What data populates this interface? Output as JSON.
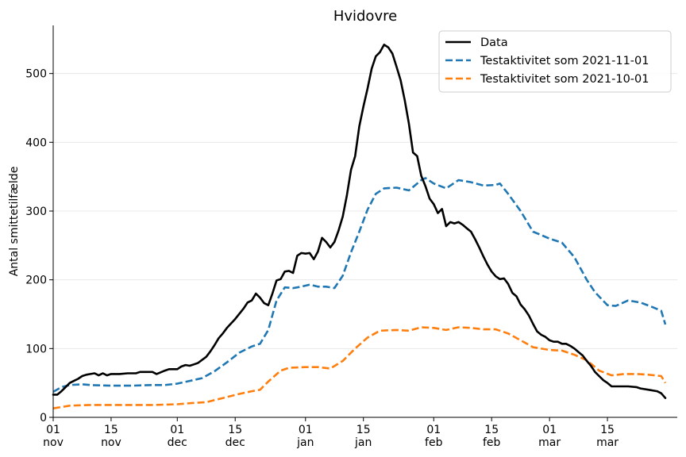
{
  "chart_data": {
    "type": "line",
    "title": "Hvidovre",
    "xlabel": "",
    "ylabel": "Antal smittetilfælde",
    "x_range": [
      "2021-11-01",
      "2022-03-25"
    ],
    "ylim": [
      0,
      570
    ],
    "y_ticks": [
      0,
      100,
      200,
      300,
      400,
      500
    ],
    "x_ticks": [
      {
        "date": "2021-11-01",
        "day": "01",
        "month": "nov"
      },
      {
        "date": "2021-11-15",
        "day": "15",
        "month": "nov"
      },
      {
        "date": "2021-12-01",
        "day": "01",
        "month": "dec"
      },
      {
        "date": "2021-12-15",
        "day": "15",
        "month": "dec"
      },
      {
        "date": "2022-01-01",
        "day": "01",
        "month": "jan"
      },
      {
        "date": "2022-01-15",
        "day": "15",
        "month": "jan"
      },
      {
        "date": "2022-02-01",
        "day": "01",
        "month": "feb"
      },
      {
        "date": "2022-02-15",
        "day": "15",
        "month": "feb"
      },
      {
        "date": "2022-03-01",
        "day": "01",
        "month": "mar"
      },
      {
        "date": "2022-03-15",
        "day": "15",
        "month": "mar"
      }
    ],
    "grid": "horizontal",
    "legend_position": "top-right",
    "series": [
      {
        "name": "Data",
        "color": "#000000",
        "style": "solid",
        "points": [
          [
            "2021-11-01",
            33
          ],
          [
            "2021-11-02",
            33
          ],
          [
            "2021-11-03",
            38
          ],
          [
            "2021-11-04",
            44
          ],
          [
            "2021-11-05",
            50
          ],
          [
            "2021-11-06",
            53
          ],
          [
            "2021-11-07",
            56
          ],
          [
            "2021-11-08",
            60
          ],
          [
            "2021-11-09",
            62
          ],
          [
            "2021-11-10",
            63
          ],
          [
            "2021-11-11",
            64
          ],
          [
            "2021-11-12",
            61
          ],
          [
            "2021-11-13",
            64
          ],
          [
            "2021-11-14",
            61
          ],
          [
            "2021-11-15",
            63
          ],
          [
            "2021-11-17",
            63
          ],
          [
            "2021-11-19",
            64
          ],
          [
            "2021-11-21",
            64
          ],
          [
            "2021-11-22",
            66
          ],
          [
            "2021-11-25",
            66
          ],
          [
            "2021-11-26",
            63
          ],
          [
            "2021-11-28",
            68
          ],
          [
            "2021-11-29",
            70
          ],
          [
            "2021-12-01",
            70
          ],
          [
            "2021-12-02",
            74
          ],
          [
            "2021-12-03",
            76
          ],
          [
            "2021-12-04",
            75
          ],
          [
            "2021-12-05",
            77
          ],
          [
            "2021-12-06",
            79
          ],
          [
            "2021-12-08",
            88
          ],
          [
            "2021-12-09",
            96
          ],
          [
            "2021-12-10",
            105
          ],
          [
            "2021-12-11",
            115
          ],
          [
            "2021-12-12",
            122
          ],
          [
            "2021-12-13",
            130
          ],
          [
            "2021-12-15",
            143
          ],
          [
            "2021-12-17",
            158
          ],
          [
            "2021-12-18",
            167
          ],
          [
            "2021-12-19",
            170
          ],
          [
            "2021-12-20",
            180
          ],
          [
            "2021-12-21",
            174
          ],
          [
            "2021-12-22",
            166
          ],
          [
            "2021-12-23",
            163
          ],
          [
            "2021-12-24",
            180
          ],
          [
            "2021-12-25",
            199
          ],
          [
            "2021-12-26",
            201
          ],
          [
            "2021-12-27",
            212
          ],
          [
            "2021-12-28",
            213
          ],
          [
            "2021-12-29",
            210
          ],
          [
            "2021-12-30",
            235
          ],
          [
            "2021-12-31",
            239
          ],
          [
            "2022-01-01",
            238
          ],
          [
            "2022-01-02",
            239
          ],
          [
            "2022-01-03",
            230
          ],
          [
            "2022-01-04",
            241
          ],
          [
            "2022-01-05",
            261
          ],
          [
            "2022-01-06",
            255
          ],
          [
            "2022-01-07",
            247
          ],
          [
            "2022-01-08",
            255
          ],
          [
            "2022-01-09",
            272
          ],
          [
            "2022-01-10",
            292
          ],
          [
            "2022-01-11",
            323
          ],
          [
            "2022-01-12",
            360
          ],
          [
            "2022-01-13",
            380
          ],
          [
            "2022-01-14",
            423
          ],
          [
            "2022-01-15",
            452
          ],
          [
            "2022-01-16",
            478
          ],
          [
            "2022-01-17",
            507
          ],
          [
            "2022-01-18",
            525
          ],
          [
            "2022-01-19",
            531
          ],
          [
            "2022-01-20",
            542
          ],
          [
            "2022-01-21",
            538
          ],
          [
            "2022-01-22",
            529
          ],
          [
            "2022-01-23",
            510
          ],
          [
            "2022-01-24",
            490
          ],
          [
            "2022-01-25",
            461
          ],
          [
            "2022-01-26",
            427
          ],
          [
            "2022-01-27",
            385
          ],
          [
            "2022-01-28",
            380
          ],
          [
            "2022-01-29",
            351
          ],
          [
            "2022-01-30",
            336
          ],
          [
            "2022-01-31",
            318
          ],
          [
            "2022-02-01",
            310
          ],
          [
            "2022-02-02",
            297
          ],
          [
            "2022-02-03",
            303
          ],
          [
            "2022-02-04",
            278
          ],
          [
            "2022-02-05",
            284
          ],
          [
            "2022-02-06",
            282
          ],
          [
            "2022-02-07",
            284
          ],
          [
            "2022-02-08",
            280
          ],
          [
            "2022-02-09",
            275
          ],
          [
            "2022-02-10",
            270
          ],
          [
            "2022-02-11",
            259
          ],
          [
            "2022-02-12",
            247
          ],
          [
            "2022-02-13",
            234
          ],
          [
            "2022-02-14",
            222
          ],
          [
            "2022-02-15",
            212
          ],
          [
            "2022-02-16",
            205
          ],
          [
            "2022-02-17",
            201
          ],
          [
            "2022-02-18",
            202
          ],
          [
            "2022-02-19",
            194
          ],
          [
            "2022-02-20",
            181
          ],
          [
            "2022-02-21",
            176
          ],
          [
            "2022-02-22",
            164
          ],
          [
            "2022-02-23",
            157
          ],
          [
            "2022-02-24",
            148
          ],
          [
            "2022-02-25",
            136
          ],
          [
            "2022-02-26",
            125
          ],
          [
            "2022-02-27",
            120
          ],
          [
            "2022-02-28",
            117
          ],
          [
            "2022-03-01",
            112
          ],
          [
            "2022-03-02",
            110
          ],
          [
            "2022-03-03",
            110
          ],
          [
            "2022-03-04",
            107
          ],
          [
            "2022-03-05",
            107
          ],
          [
            "2022-03-06",
            104
          ],
          [
            "2022-03-07",
            100
          ],
          [
            "2022-03-08",
            95
          ],
          [
            "2022-03-09",
            90
          ],
          [
            "2022-03-10",
            82
          ],
          [
            "2022-03-11",
            75
          ],
          [
            "2022-03-12",
            66
          ],
          [
            "2022-03-13",
            60
          ],
          [
            "2022-03-14",
            54
          ],
          [
            "2022-03-15",
            50
          ],
          [
            "2022-03-16",
            45
          ],
          [
            "2022-03-18",
            45
          ],
          [
            "2022-03-20",
            45
          ],
          [
            "2022-03-22",
            44
          ],
          [
            "2022-03-23",
            42
          ],
          [
            "2022-03-25",
            40
          ],
          [
            "2022-03-27",
            38
          ],
          [
            "2022-03-28",
            35
          ],
          [
            "2022-03-29",
            28
          ]
        ]
      },
      {
        "name": "Testaktivitet som 2021-11-01",
        "color": "#1f77b4",
        "style": "dashed",
        "points": [
          [
            "2021-11-01",
            37
          ],
          [
            "2021-11-03",
            44
          ],
          [
            "2021-11-05",
            47
          ],
          [
            "2021-11-08",
            48
          ],
          [
            "2021-11-10",
            47
          ],
          [
            "2021-11-15",
            46
          ],
          [
            "2021-11-20",
            46
          ],
          [
            "2021-11-25",
            47
          ],
          [
            "2021-11-28",
            47
          ],
          [
            "2021-12-01",
            49
          ],
          [
            "2021-12-04",
            53
          ],
          [
            "2021-12-07",
            57
          ],
          [
            "2021-12-10",
            67
          ],
          [
            "2021-12-13",
            80
          ],
          [
            "2021-12-16",
            94
          ],
          [
            "2021-12-19",
            103
          ],
          [
            "2021-12-21",
            107
          ],
          [
            "2021-12-23",
            127
          ],
          [
            "2021-12-25",
            170
          ],
          [
            "2021-12-27",
            189
          ],
          [
            "2021-12-29",
            188
          ],
          [
            "2021-12-31",
            190
          ],
          [
            "2022-01-02",
            193
          ],
          [
            "2022-01-04",
            190
          ],
          [
            "2022-01-06",
            190
          ],
          [
            "2022-01-08",
            188
          ],
          [
            "2022-01-10",
            206
          ],
          [
            "2022-01-12",
            240
          ],
          [
            "2022-01-14",
            270
          ],
          [
            "2022-01-16",
            302
          ],
          [
            "2022-01-18",
            325
          ],
          [
            "2022-01-20",
            333
          ],
          [
            "2022-01-23",
            334
          ],
          [
            "2022-01-26",
            330
          ],
          [
            "2022-01-29",
            345
          ],
          [
            "2022-01-30",
            348
          ],
          [
            "2022-02-01",
            340
          ],
          [
            "2022-02-04",
            333
          ],
          [
            "2022-02-07",
            345
          ],
          [
            "2022-02-10",
            342
          ],
          [
            "2022-02-13",
            337
          ],
          [
            "2022-02-16",
            338
          ],
          [
            "2022-02-17",
            340
          ],
          [
            "2022-02-19",
            325
          ],
          [
            "2022-02-22",
            300
          ],
          [
            "2022-02-25",
            270
          ],
          [
            "2022-02-27",
            265
          ],
          [
            "2022-03-01",
            260
          ],
          [
            "2022-03-04",
            254
          ],
          [
            "2022-03-07",
            233
          ],
          [
            "2022-03-10",
            200
          ],
          [
            "2022-03-12",
            182
          ],
          [
            "2022-03-15",
            163
          ],
          [
            "2022-03-17",
            162
          ],
          [
            "2022-03-20",
            170
          ],
          [
            "2022-03-23",
            167
          ],
          [
            "2022-03-26",
            160
          ],
          [
            "2022-03-28",
            155
          ],
          [
            "2022-03-29",
            135
          ]
        ]
      },
      {
        "name": "Testaktivitet som 2021-10-01",
        "color": "#ff7f0e",
        "style": "dashed",
        "points": [
          [
            "2021-11-01",
            13
          ],
          [
            "2021-11-05",
            17
          ],
          [
            "2021-11-10",
            18
          ],
          [
            "2021-11-15",
            18
          ],
          [
            "2021-11-20",
            18
          ],
          [
            "2021-11-25",
            18
          ],
          [
            "2021-12-01",
            19
          ],
          [
            "2021-12-05",
            21
          ],
          [
            "2021-12-08",
            22
          ],
          [
            "2021-12-12",
            28
          ],
          [
            "2021-12-16",
            34
          ],
          [
            "2021-12-19",
            38
          ],
          [
            "2021-12-21",
            40
          ],
          [
            "2021-12-23",
            52
          ],
          [
            "2021-12-26",
            68
          ],
          [
            "2021-12-28",
            72
          ],
          [
            "2022-01-01",
            73
          ],
          [
            "2022-01-04",
            73
          ],
          [
            "2022-01-07",
            71
          ],
          [
            "2022-01-10",
            82
          ],
          [
            "2022-01-13",
            100
          ],
          [
            "2022-01-16",
            116
          ],
          [
            "2022-01-19",
            126
          ],
          [
            "2022-01-23",
            127
          ],
          [
            "2022-01-26",
            126
          ],
          [
            "2022-01-29",
            131
          ],
          [
            "2022-02-01",
            130
          ],
          [
            "2022-02-04",
            127
          ],
          [
            "2022-02-07",
            131
          ],
          [
            "2022-02-10",
            130
          ],
          [
            "2022-02-13",
            128
          ],
          [
            "2022-02-16",
            128
          ],
          [
            "2022-02-19",
            122
          ],
          [
            "2022-02-22",
            112
          ],
          [
            "2022-02-25",
            102
          ],
          [
            "2022-03-01",
            98
          ],
          [
            "2022-03-04",
            97
          ],
          [
            "2022-03-07",
            91
          ],
          [
            "2022-03-10",
            83
          ],
          [
            "2022-03-13",
            68
          ],
          [
            "2022-03-16",
            61
          ],
          [
            "2022-03-19",
            63
          ],
          [
            "2022-03-22",
            63
          ],
          [
            "2022-03-25",
            62
          ],
          [
            "2022-03-28",
            60
          ],
          [
            "2022-03-29",
            50
          ]
        ]
      }
    ]
  }
}
